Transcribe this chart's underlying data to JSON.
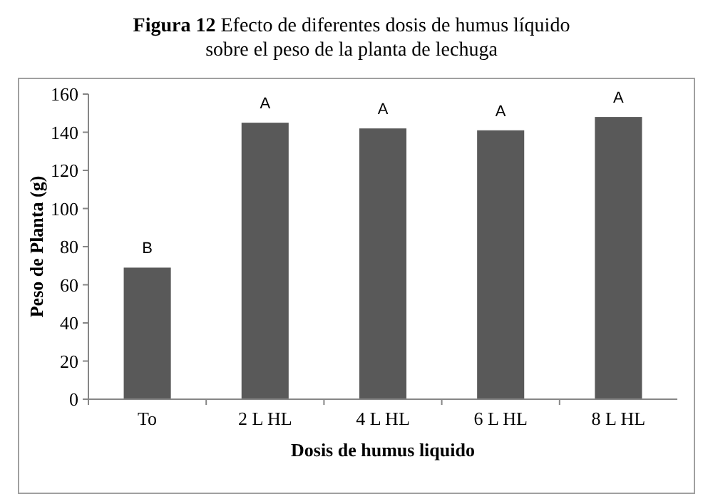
{
  "chart_data": {
    "type": "bar",
    "title": "Figura 12 Efecto de diferentes dosis de humus líquido",
    "subtitle": "sobre el peso de la planta de lechuga",
    "xlabel": "Dosis de humus liquido",
    "ylabel": "Peso de Planta (g)",
    "categories": [
      "To",
      "2 L HL",
      "4 L HL",
      "6 L HL",
      "8 L HL"
    ],
    "values": [
      69,
      145,
      142,
      141,
      148
    ],
    "color": "#595959",
    "ylim": [
      0,
      160
    ],
    "yticks": [
      0,
      20,
      40,
      60,
      80,
      100,
      120,
      140,
      160
    ],
    "grid": false,
    "annotations": [
      {
        "text": "B",
        "x": "To",
        "y": 69
      },
      {
        "text": "A",
        "x": "2 L HL",
        "y": 145
      },
      {
        "text": "A",
        "x": "4 L HL",
        "y": 142
      },
      {
        "text": "A",
        "x": "6 L HL",
        "y": 141
      },
      {
        "text": "A",
        "x": "8 L HL",
        "y": 148
      }
    ]
  }
}
